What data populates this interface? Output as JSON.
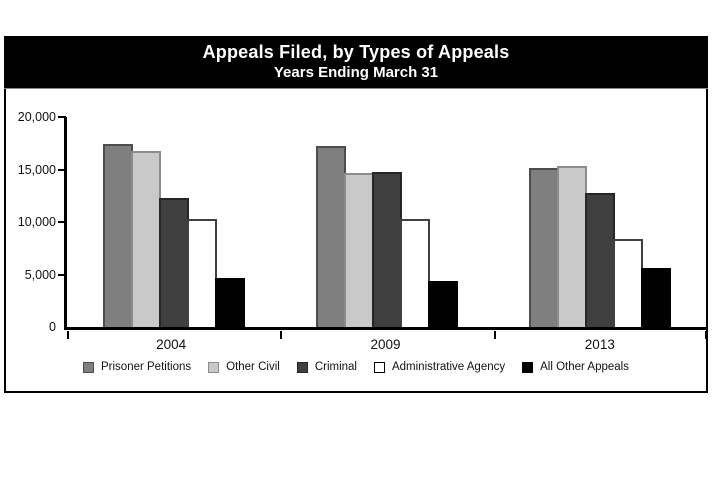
{
  "title_band": {
    "title": "Appeals Filed, by Types of Appeals",
    "subtitle": "Years Ending March 31"
  },
  "chart_data": {
    "type": "bar",
    "title": "Appeals Filed, by Types of Appeals",
    "subtitle": "Years Ending March 31",
    "categories": [
      "2004",
      "2009",
      "2013"
    ],
    "series": [
      {
        "name": "Prisoner Petitions",
        "color": "#7f7f7f",
        "border_color": "#4d4d4d",
        "values": [
          17400,
          17200,
          15100
        ]
      },
      {
        "name": "Other Civil",
        "color": "#c9c9c9",
        "border_color": "#8c8c8c",
        "values": [
          16800,
          14700,
          15300
        ]
      },
      {
        "name": "Criminal",
        "color": "#3f3f3f",
        "border_color": "#262626",
        "values": [
          12250,
          14800,
          12800
        ]
      },
      {
        "name": "Administrative Agency",
        "color": "#ffffff",
        "border_color": "#404040",
        "values": [
          10300,
          10250,
          8400
        ]
      },
      {
        "name": "All Other Appeals",
        "color": "#000000",
        "border_color": "#000000",
        "values": [
          4700,
          4400,
          5600
        ]
      }
    ],
    "ylim": [
      0,
      20000
    ],
    "ytick_interval": 5000,
    "yticks": [
      {
        "value": 0,
        "label": "0"
      },
      {
        "value": 5000,
        "label": "5,000"
      },
      {
        "value": 10000,
        "label": "10,000"
      },
      {
        "value": 15000,
        "label": "15,000"
      },
      {
        "value": 20000,
        "label": "20,000"
      }
    ],
    "grid": false,
    "legend_position": "bottom"
  },
  "colors": {
    "title_band_bg": "#000000",
    "title_band_text": "#ffffff",
    "axis": "#000000",
    "panel_border": "#000000",
    "background": "#ffffff"
  }
}
